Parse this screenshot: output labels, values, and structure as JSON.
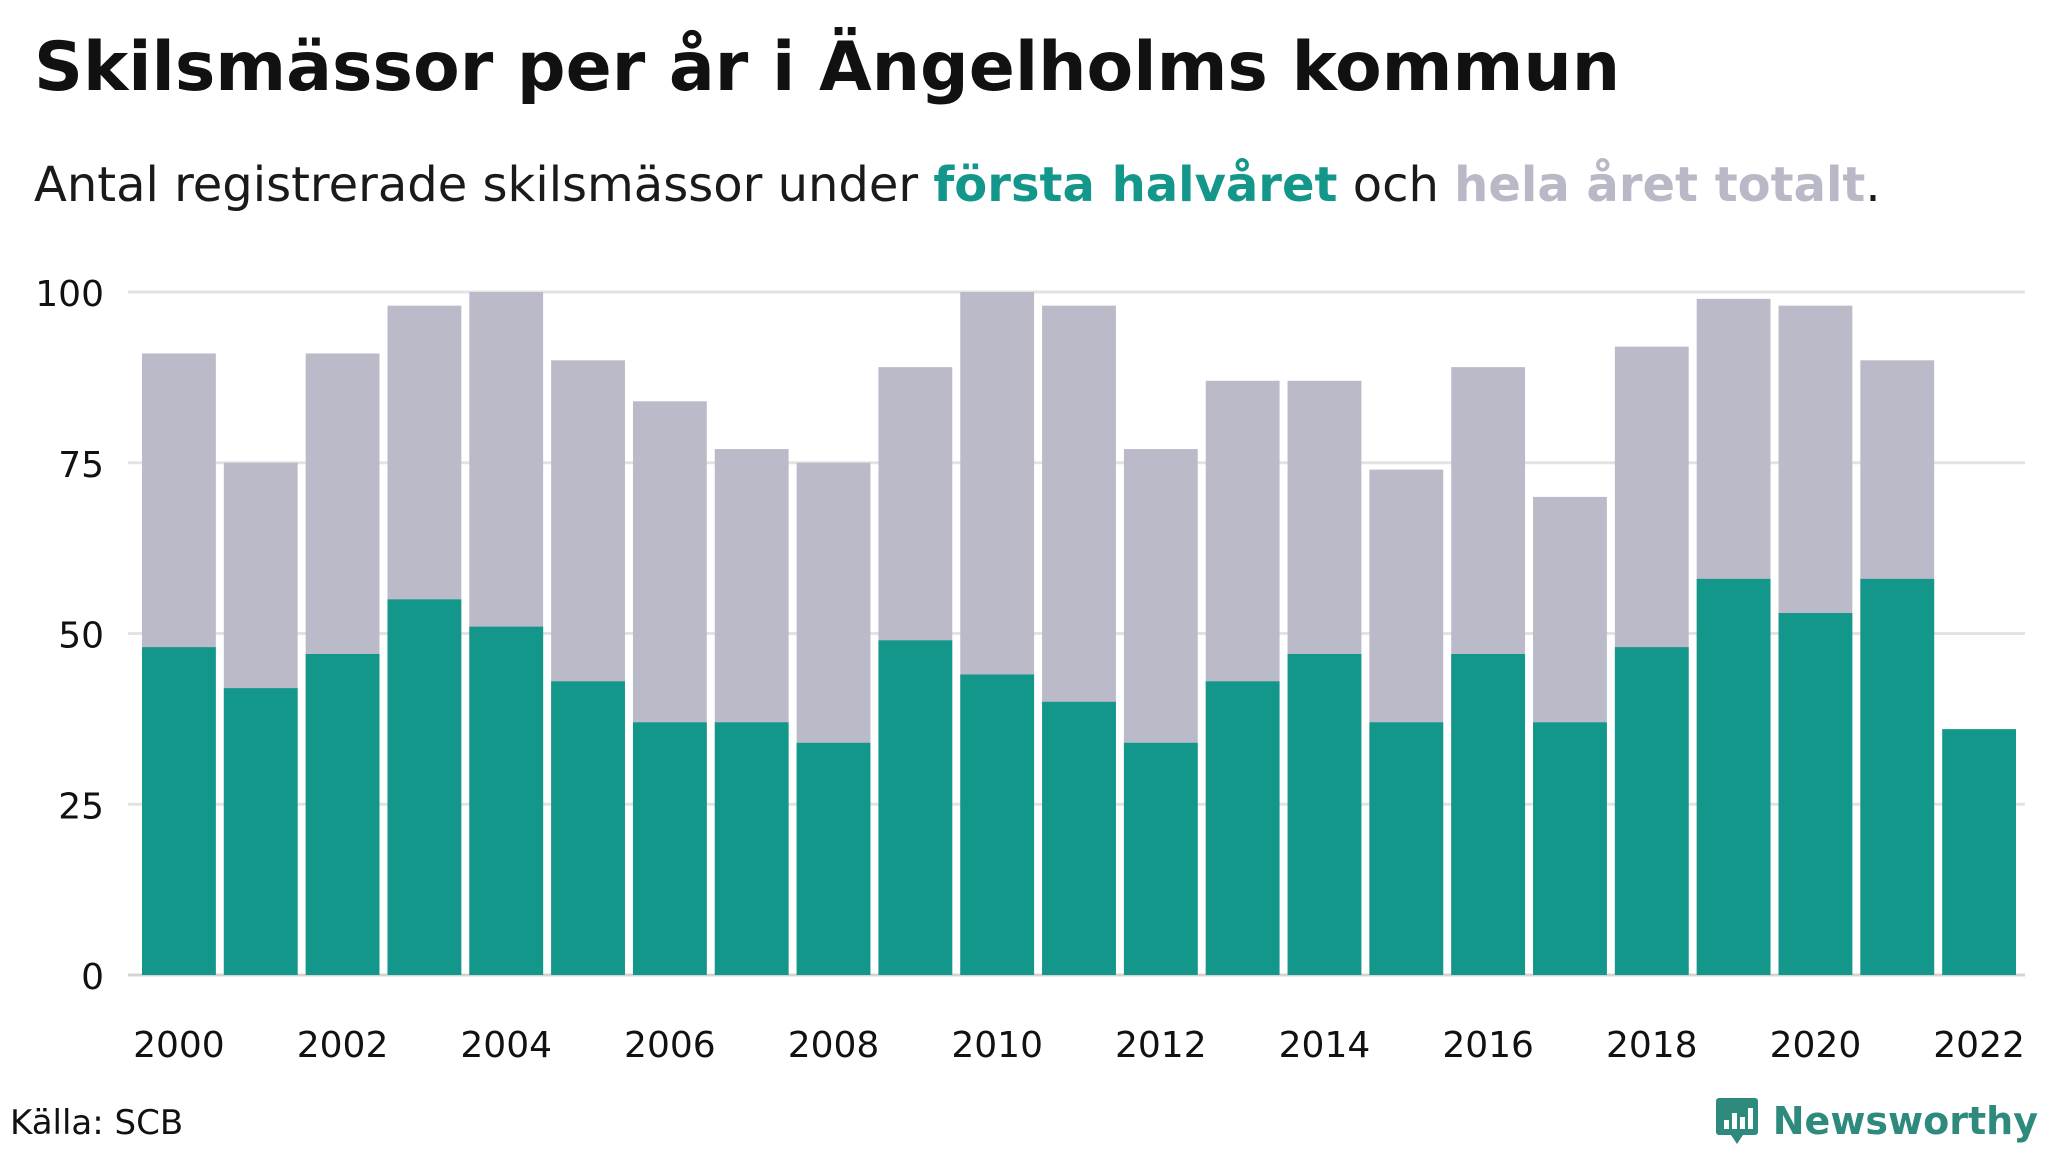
{
  "title": "Skilsmässor per år i Ängelholms kommun",
  "subtitle": {
    "before": "Antal registrerade skilsmässor under ",
    "highlight_first": "första halvåret",
    "middle": " och ",
    "highlight_total": "hela året totalt",
    "after": "."
  },
  "source": "Källa: SCB",
  "brand": {
    "name": "Newsworthy",
    "icon": "newsworthy-logo-icon"
  },
  "colors": {
    "first_half": "#13978a",
    "full_year": "#bbbac8",
    "grid": "#e3e3e3",
    "text": "#111111"
  },
  "chart_data": {
    "type": "bar",
    "stacking": "overlay",
    "categories": [
      "2000",
      "2001",
      "2002",
      "2003",
      "2004",
      "2005",
      "2006",
      "2007",
      "2008",
      "2009",
      "2010",
      "2011",
      "2012",
      "2013",
      "2014",
      "2015",
      "2016",
      "2017",
      "2018",
      "2019",
      "2020",
      "2021",
      "2022"
    ],
    "x_tick_labels": [
      "2000",
      "2002",
      "2004",
      "2006",
      "2008",
      "2010",
      "2012",
      "2014",
      "2016",
      "2018",
      "2020",
      "2022"
    ],
    "series": [
      {
        "name": "hela året totalt",
        "color": "#bbbac8",
        "values": [
          91,
          75,
          91,
          98,
          100,
          90,
          84,
          77,
          75,
          89,
          100,
          98,
          77,
          87,
          87,
          74,
          89,
          70,
          92,
          99,
          98,
          90,
          null
        ]
      },
      {
        "name": "första halvåret",
        "color": "#13978a",
        "values": [
          48,
          42,
          47,
          55,
          51,
          43,
          37,
          37,
          34,
          49,
          44,
          40,
          34,
          43,
          47,
          37,
          47,
          37,
          48,
          58,
          53,
          58,
          36
        ]
      }
    ],
    "ylim": [
      0,
      100
    ],
    "y_ticks": [
      0,
      25,
      50,
      75,
      100
    ],
    "grid": true
  }
}
